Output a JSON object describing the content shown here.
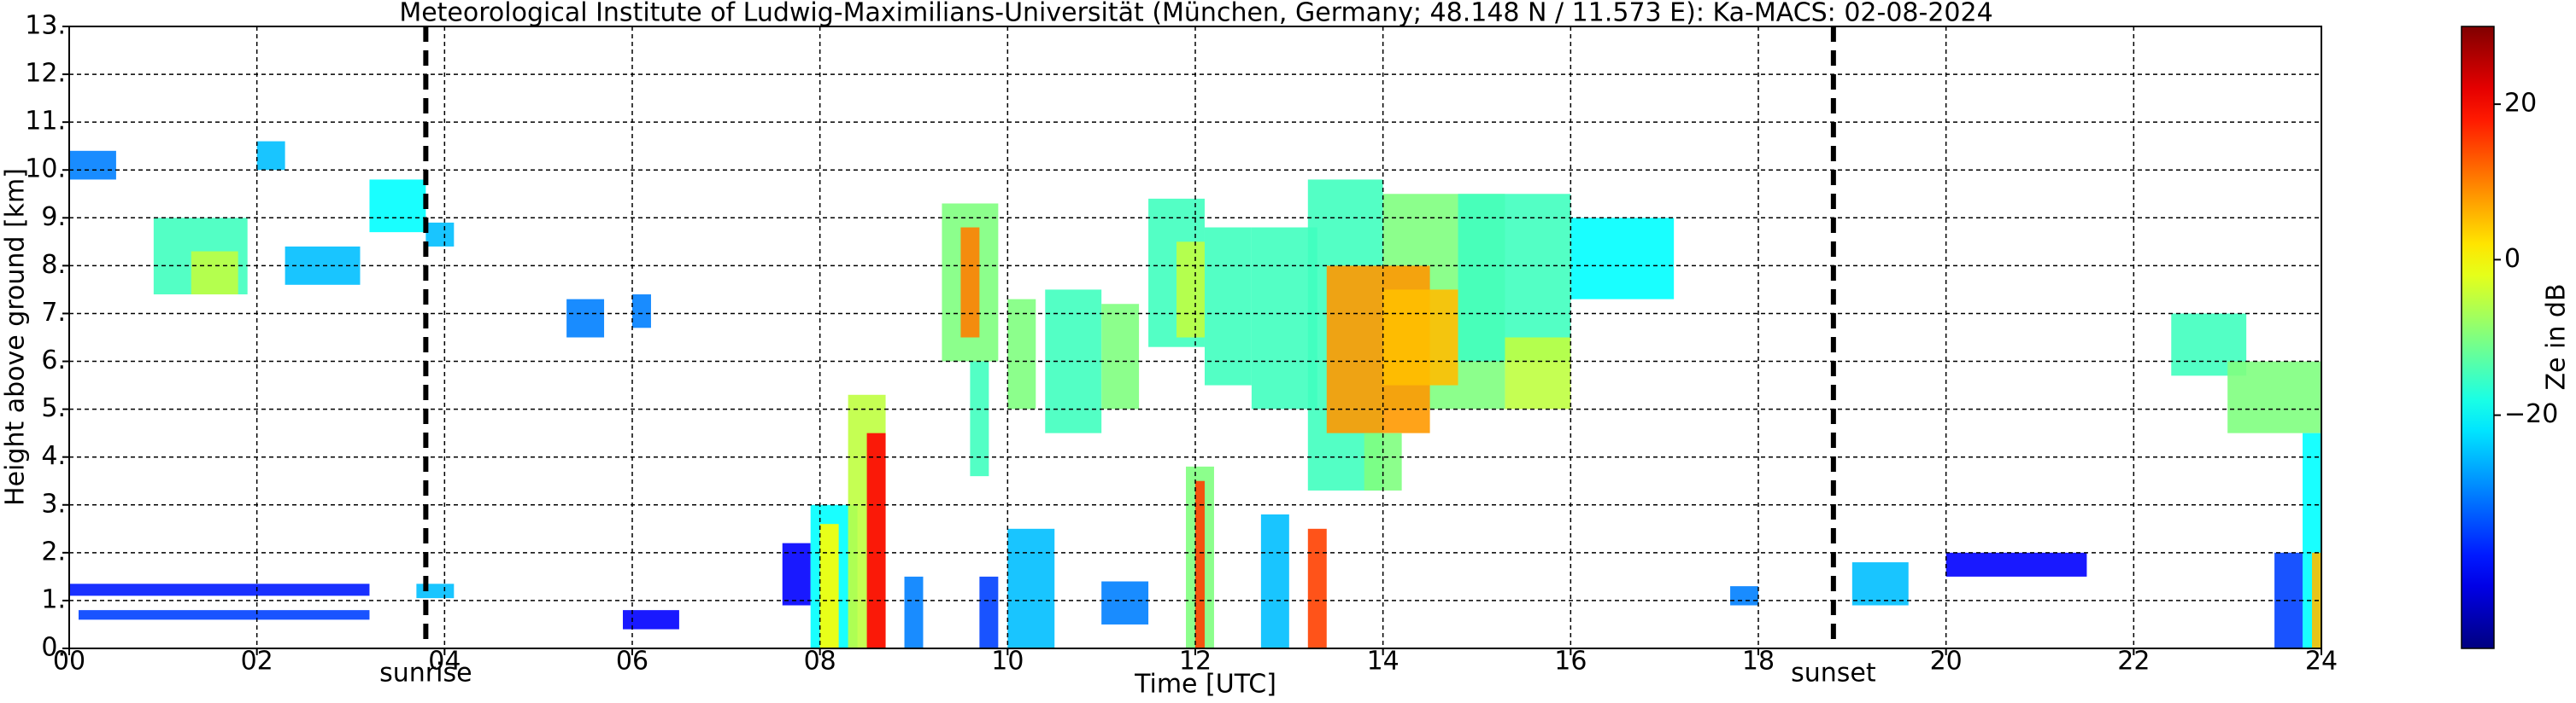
{
  "chart_data": {
    "type": "time-height",
    "title": "Meteorological Institute of Ludwig-Maximilians-Universität (München, Germany; 48.148 N / 11.573 E):    Ka-MACS: 02-08-2024",
    "xlabel": "Time [UTC]",
    "ylabel": "Height above ground [km]",
    "colorbar_label": "Ze in dB",
    "colormap": "jet",
    "grid": true,
    "xlim": [
      0,
      24
    ],
    "xticks": [
      {
        "value": 0,
        "label": "00"
      },
      {
        "value": 2,
        "label": "02"
      },
      {
        "value": 4,
        "label": "04"
      },
      {
        "value": 6,
        "label": "06"
      },
      {
        "value": 8,
        "label": "08"
      },
      {
        "value": 10,
        "label": "10"
      },
      {
        "value": 12,
        "label": "12"
      },
      {
        "value": 14,
        "label": "14"
      },
      {
        "value": 16,
        "label": "16"
      },
      {
        "value": 18,
        "label": "18"
      },
      {
        "value": 20,
        "label": "20"
      },
      {
        "value": 22,
        "label": "22"
      },
      {
        "value": 24,
        "label": "24"
      }
    ],
    "ylim": [
      0,
      13
    ],
    "yticks": [
      {
        "value": 0,
        "label": "0."
      },
      {
        "value": 1,
        "label": "1."
      },
      {
        "value": 2,
        "label": "2."
      },
      {
        "value": 3,
        "label": "3."
      },
      {
        "value": 4,
        "label": "4."
      },
      {
        "value": 5,
        "label": "5."
      },
      {
        "value": 6,
        "label": "6."
      },
      {
        "value": 7,
        "label": "7."
      },
      {
        "value": 8,
        "label": "8."
      },
      {
        "value": 9,
        "label": "9."
      },
      {
        "value": 10,
        "label": "10."
      },
      {
        "value": 11,
        "label": "11."
      },
      {
        "value": 12,
        "label": "12."
      },
      {
        "value": 13,
        "label": "13."
      }
    ],
    "clim": [
      -50,
      30
    ],
    "cticks": [
      {
        "value": -20,
        "label": "−20"
      },
      0,
      20
    ],
    "annotations": [
      {
        "text": "sunrise",
        "x": 3.8
      },
      {
        "text": "sunset",
        "x": 18.8
      }
    ],
    "cells": [
      {
        "x": [
          0.1,
          3.2
        ],
        "y": [
          0.6,
          0.8
        ],
        "value": -35
      },
      {
        "x": [
          0,
          3.2
        ],
        "y": [
          1.1,
          1.35
        ],
        "value": -38
      },
      {
        "x": [
          3.7,
          4.1
        ],
        "y": [
          1.05,
          1.35
        ],
        "value": -25
      },
      {
        "x": [
          0,
          0.5
        ],
        "y": [
          9.8,
          10.4
        ],
        "value": -30
      },
      {
        "x": [
          0.9,
          1.9
        ],
        "y": [
          7.4,
          9.0
        ],
        "value": -15
      },
      {
        "x": [
          1.3,
          1.8
        ],
        "y": [
          7.4,
          8.3
        ],
        "value": -5
      },
      {
        "x": [
          2.0,
          2.3
        ],
        "y": [
          10.0,
          10.6
        ],
        "value": -25
      },
      {
        "x": [
          2.3,
          3.1
        ],
        "y": [
          7.6,
          8.4
        ],
        "value": -25
      },
      {
        "x": [
          3.2,
          3.8
        ],
        "y": [
          8.7,
          9.8
        ],
        "value": -20
      },
      {
        "x": [
          3.8,
          4.1
        ],
        "y": [
          8.4,
          8.9
        ],
        "value": -25
      },
      {
        "x": [
          5.3,
          5.7
        ],
        "y": [
          6.5,
          7.3
        ],
        "value": -30
      },
      {
        "x": [
          6.0,
          6.2
        ],
        "y": [
          6.7,
          7.4
        ],
        "value": -30
      },
      {
        "x": [
          5.9,
          6.5
        ],
        "y": [
          0.4,
          0.8
        ],
        "value": -40
      },
      {
        "x": [
          7.6,
          7.9
        ],
        "y": [
          0.9,
          2.2
        ],
        "value": -40
      },
      {
        "x": [
          7.9,
          8.4
        ],
        "y": [
          0,
          3.0
        ],
        "value": -20
      },
      {
        "x": [
          8.0,
          8.2
        ],
        "y": [
          0,
          2.6
        ],
        "value": 0
      },
      {
        "x": [
          8.3,
          8.7
        ],
        "y": [
          0,
          5.3
        ],
        "value": -5
      },
      {
        "x": [
          8.5,
          8.7
        ],
        "y": [
          0,
          4.5
        ],
        "value": 20
      },
      {
        "x": [
          8.9,
          9.1
        ],
        "y": [
          0,
          1.5
        ],
        "value": -30
      },
      {
        "x": [
          9.3,
          9.9
        ],
        "y": [
          6.0,
          9.3
        ],
        "value": -10
      },
      {
        "x": [
          9.5,
          9.7
        ],
        "y": [
          6.5,
          8.8
        ],
        "value": 10
      },
      {
        "x": [
          9.6,
          9.8
        ],
        "y": [
          3.6,
          6.0
        ],
        "value": -15
      },
      {
        "x": [
          9.7,
          9.9
        ],
        "y": [
          0,
          1.5
        ],
        "value": -35
      },
      {
        "x": [
          10.0,
          10.3
        ],
        "y": [
          5.0,
          7.3
        ],
        "value": -10
      },
      {
        "x": [
          10.0,
          10.5
        ],
        "y": [
          0,
          2.5
        ],
        "value": -25
      },
      {
        "x": [
          10.4,
          11.0
        ],
        "y": [
          4.5,
          7.5
        ],
        "value": -15
      },
      {
        "x": [
          11.0,
          11.4
        ],
        "y": [
          5.0,
          7.2
        ],
        "value": -10
      },
      {
        "x": [
          11.0,
          11.5
        ],
        "y": [
          0.5,
          1.4
        ],
        "value": -30
      },
      {
        "x": [
          11.5,
          12.1
        ],
        "y": [
          6.3,
          9.4
        ],
        "value": -15
      },
      {
        "x": [
          11.8,
          12.1
        ],
        "y": [
          6.5,
          8.5
        ],
        "value": -5
      },
      {
        "x": [
          12.1,
          12.6
        ],
        "y": [
          5.5,
          8.8
        ],
        "value": -15
      },
      {
        "x": [
          11.9,
          12.2
        ],
        "y": [
          0,
          3.8
        ],
        "value": -10
      },
      {
        "x": [
          12.0,
          12.1
        ],
        "y": [
          0,
          3.5
        ],
        "value": 15
      },
      {
        "x": [
          12.7,
          13.0
        ],
        "y": [
          0,
          2.8
        ],
        "value": -25
      },
      {
        "x": [
          13.2,
          13.4
        ],
        "y": [
          0,
          2.5
        ],
        "value": 15
      },
      {
        "x": [
          12.6,
          13.3
        ],
        "y": [
          5.0,
          8.8
        ],
        "value": -15
      },
      {
        "x": [
          13.2,
          14.0
        ],
        "y": [
          3.3,
          9.8
        ],
        "value": -15
      },
      {
        "x": [
          14.0,
          15.3
        ],
        "y": [
          5.0,
          9.5
        ],
        "value": -10
      },
      {
        "x": [
          14.8,
          16.0
        ],
        "y": [
          6.0,
          9.5
        ],
        "value": -15
      },
      {
        "x": [
          15.3,
          16.0
        ],
        "y": [
          5.0,
          6.5
        ],
        "value": -5
      },
      {
        "x": [
          16.0,
          17.1
        ],
        "y": [
          7.3,
          9.0
        ],
        "value": -20
      },
      {
        "x": [
          13.4,
          14.5
        ],
        "y": [
          4.5,
          8.0
        ],
        "value": 8
      },
      {
        "x": [
          14.0,
          14.8
        ],
        "y": [
          5.5,
          7.5
        ],
        "value": 5
      },
      {
        "x": [
          13.8,
          14.2
        ],
        "y": [
          3.3,
          4.5
        ],
        "value": -10
      },
      {
        "x": [
          17.7,
          18.0
        ],
        "y": [
          0.9,
          1.3
        ],
        "value": -30
      },
      {
        "x": [
          19.0,
          19.6
        ],
        "y": [
          0.9,
          1.8
        ],
        "value": -25
      },
      {
        "x": [
          20.0,
          21.5
        ],
        "y": [
          1.5,
          2.0
        ],
        "value": -40
      },
      {
        "x": [
          22.4,
          23.2
        ],
        "y": [
          5.7,
          7.0
        ],
        "value": -15
      },
      {
        "x": [
          23.0,
          24
        ],
        "y": [
          4.5,
          6.0
        ],
        "value": -10
      },
      {
        "x": [
          23.5,
          23.8
        ],
        "y": [
          0,
          2.0
        ],
        "value": -35
      },
      {
        "x": [
          23.8,
          24
        ],
        "y": [
          0,
          4.5
        ],
        "value": -20
      },
      {
        "x": [
          23.9,
          24
        ],
        "y": [
          0,
          2
        ],
        "value": 5
      }
    ]
  }
}
